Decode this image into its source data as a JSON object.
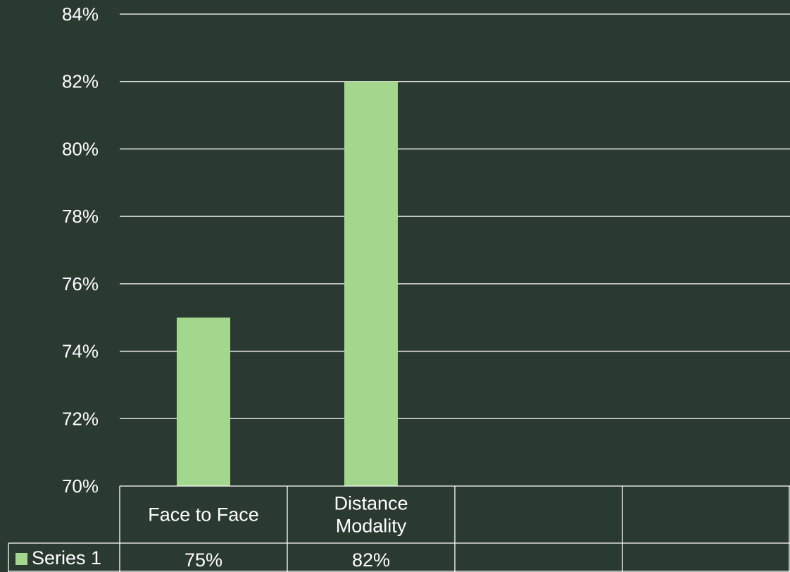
{
  "chart_data": {
    "type": "bar",
    "categories": [
      "Face to Face",
      "Distance Modality",
      "",
      ""
    ],
    "category_lines": [
      [
        "Face to Face"
      ],
      [
        "Distance",
        "Modality"
      ],
      [],
      []
    ],
    "series": [
      {
        "name": "Series 1",
        "values": [
          75,
          82,
          null,
          null
        ],
        "value_labels": [
          "75%",
          "82%",
          "",
          ""
        ]
      }
    ],
    "ylim": [
      70,
      84
    ],
    "yticks": [
      "70%",
      "72%",
      "74%",
      "76%",
      "78%",
      "80%",
      "82%",
      "84%"
    ],
    "ytick_values": [
      70,
      72,
      74,
      76,
      78,
      80,
      82,
      84
    ],
    "grid": true,
    "data_table": true,
    "legend_key_in_table": true,
    "colors": {
      "background": "#2b3a30",
      "bar": "#a2d78d",
      "grid": "#ffffff",
      "text": "#ffffff"
    }
  }
}
